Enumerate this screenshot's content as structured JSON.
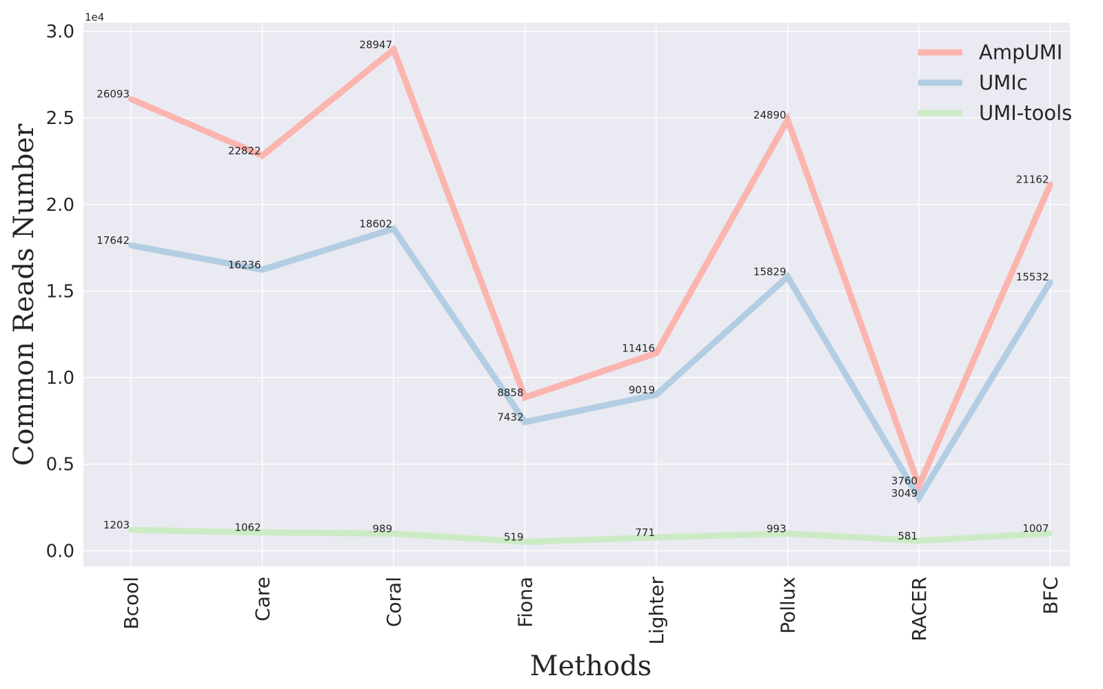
{
  "chart_data": {
    "type": "line",
    "xlabel": "Methods",
    "ylabel": "Common Reads Number",
    "offset_label": "1e4",
    "ylim": [
      -900,
      30500
    ],
    "y_ticks": [
      0,
      5000,
      10000,
      15000,
      20000,
      25000,
      30000
    ],
    "y_tick_labels": [
      "0.0",
      "0.5",
      "1.0",
      "1.5",
      "2.0",
      "2.5",
      "3.0"
    ],
    "grid": true,
    "legend_position": "top-right",
    "categories": [
      "Bcool",
      "Care",
      "Coral",
      "Fiona",
      "Lighter",
      "Pollux",
      "RACER",
      "BFC"
    ],
    "series": [
      {
        "name": "AmpUMI",
        "color": "#fbb4ae",
        "values": [
          26093,
          22822,
          28947,
          8858,
          11416,
          24890,
          3760,
          21162
        ]
      },
      {
        "name": "UMIc",
        "color": "#b3cde3",
        "values": [
          17642,
          16236,
          18602,
          7432,
          9019,
          15829,
          3049,
          15532
        ]
      },
      {
        "name": "UMI-tools",
        "color": "#ccebc5",
        "values": [
          1203,
          1062,
          989,
          519,
          771,
          993,
          581,
          1007
        ]
      }
    ]
  }
}
